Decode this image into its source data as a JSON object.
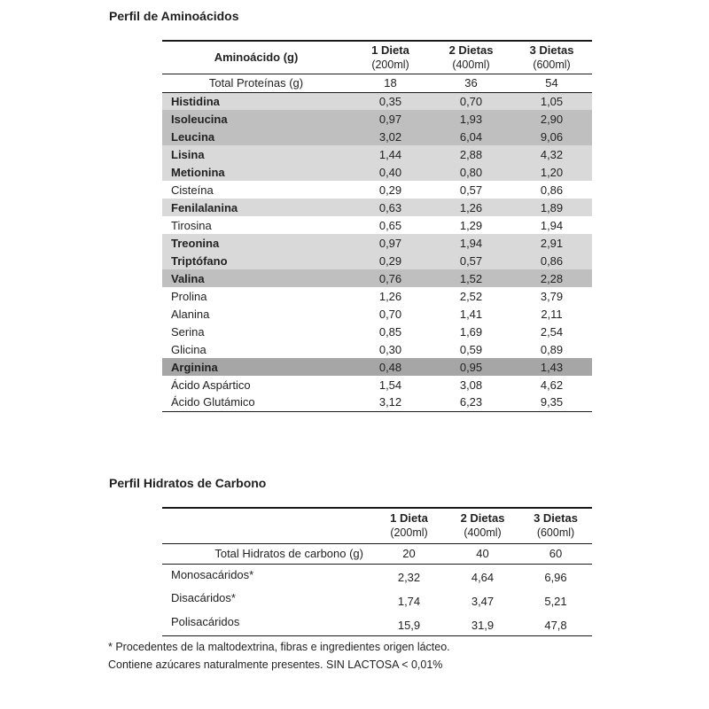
{
  "colors": {
    "row_light": "#d9d9d9",
    "row_medium": "#bfbfbf",
    "row_dark": "#a6a6a6",
    "border": "#1a1a1a",
    "text": "#222222",
    "background": "#ffffff"
  },
  "amino_table": {
    "title": "Perfil de Aminoácidos",
    "col_header": "Aminoácido (g)",
    "diet_headers": [
      {
        "line1": "1 Dieta",
        "line2": "(200ml)"
      },
      {
        "line1": "2 Dietas",
        "line2": "(400ml)"
      },
      {
        "line1": "3 Dietas",
        "line2": "(600ml)"
      }
    ],
    "total_row": {
      "label": "Total Proteínas (g)",
      "values": [
        "18",
        "36",
        "54"
      ]
    },
    "rows": [
      {
        "label": "Histidina",
        "values": [
          "0,35",
          "0,70",
          "1,05"
        ],
        "shade": "light"
      },
      {
        "label": "Isoleucina",
        "values": [
          "0,97",
          "1,93",
          "2,90"
        ],
        "shade": "medium"
      },
      {
        "label": "Leucina",
        "values": [
          "3,02",
          "6,04",
          "9,06"
        ],
        "shade": "medium"
      },
      {
        "label": "Lisina",
        "values": [
          "1,44",
          "2,88",
          "4,32"
        ],
        "shade": "light"
      },
      {
        "label": "Metionina",
        "values": [
          "0,40",
          "0,80",
          "1,20"
        ],
        "shade": "light"
      },
      {
        "label": "Cisteína",
        "values": [
          "0,29",
          "0,57",
          "0,86"
        ],
        "shade": "white"
      },
      {
        "label": "Fenilalanina",
        "values": [
          "0,63",
          "1,26",
          "1,89"
        ],
        "shade": "light"
      },
      {
        "label": "Tirosina",
        "values": [
          "0,65",
          "1,29",
          "1,94"
        ],
        "shade": "white"
      },
      {
        "label": "Treonina",
        "values": [
          "0,97",
          "1,94",
          "2,91"
        ],
        "shade": "light"
      },
      {
        "label": "Triptófano",
        "values": [
          "0,29",
          "0,57",
          "0,86"
        ],
        "shade": "light"
      },
      {
        "label": "Valina",
        "values": [
          "0,76",
          "1,52",
          "2,28"
        ],
        "shade": "medium"
      },
      {
        "label": "Prolina",
        "values": [
          "1,26",
          "2,52",
          "3,79"
        ],
        "shade": "white"
      },
      {
        "label": "Alanina",
        "values": [
          "0,70",
          "1,41",
          "2,11"
        ],
        "shade": "white"
      },
      {
        "label": "Serina",
        "values": [
          "0,85",
          "1,69",
          "2,54"
        ],
        "shade": "white"
      },
      {
        "label": "Glicina",
        "values": [
          "0,30",
          "0,59",
          "0,89"
        ],
        "shade": "white"
      },
      {
        "label": "Arginina",
        "values": [
          "0,48",
          "0,95",
          "1,43"
        ],
        "shade": "dark"
      },
      {
        "label": "Ácido Aspártico",
        "values": [
          "1,54",
          "3,08",
          "4,62"
        ],
        "shade": "white"
      },
      {
        "label": "Ácido Glutámico",
        "values": [
          "3,12",
          "6,23",
          "9,35"
        ],
        "shade": "white"
      }
    ]
  },
  "carb_table": {
    "title": "Perfil Hidratos de Carbono",
    "col_header": "",
    "diet_headers": [
      {
        "line1": "1 Dieta",
        "line2": "(200ml)"
      },
      {
        "line1": "2 Dietas",
        "line2": "(400ml)"
      },
      {
        "line1": "3 Dietas",
        "line2": "(600ml)"
      }
    ],
    "total_row": {
      "label": "Total Hidratos de carbono (g)",
      "values": [
        "20",
        "40",
        "60"
      ]
    },
    "rows": [
      {
        "label": "Monosacáridos*",
        "values": [
          "2,32",
          "4,64",
          "6,96"
        ],
        "shade": "white"
      },
      {
        "label": "Disacáridos*",
        "values": [
          "1,74",
          "3,47",
          "5,21"
        ],
        "shade": "white"
      },
      {
        "label": "Polisacáridos",
        "values": [
          "15,9",
          "31,9",
          "47,8"
        ],
        "shade": "white"
      }
    ]
  },
  "footnotes": [
    "* Procedentes de la maltodextrina, fibras e ingredientes origen lácteo.",
    "Contiene azúcares naturalmente presentes. SIN LACTOSA < 0,01%"
  ]
}
